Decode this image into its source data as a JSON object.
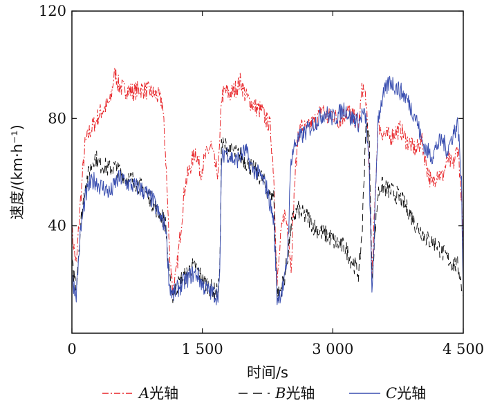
{
  "chart_data": {
    "type": "line",
    "xlabel": "时间/s",
    "ylabel": "速度/(km·h⁻¹)",
    "xlim": [
      0,
      4500
    ],
    "ylim": [
      0,
      120
    ],
    "xticks": [
      0,
      1500,
      3000,
      4500
    ],
    "xtick_labels": [
      "0",
      "1 500",
      "3 000",
      "4 500"
    ],
    "yticks": [
      40,
      80,
      120
    ],
    "ytick_labels": [
      "40",
      "80",
      "120"
    ],
    "grid": false,
    "legend_position": "bottom",
    "series": [
      {
        "name": "A光轴",
        "legend_italic": "A",
        "legend_suffix": "光轴",
        "color": "#e8262a",
        "dash": "9,3,2,3",
        "x": [
          0,
          50,
          100,
          150,
          200,
          260,
          320,
          380,
          440,
          480,
          500,
          540,
          600,
          700,
          800,
          900,
          1000,
          1040,
          1080,
          1120,
          1160,
          1200,
          1240,
          1300,
          1360,
          1420,
          1480,
          1540,
          1600,
          1650,
          1680,
          1700,
          1720,
          1760,
          1820,
          1880,
          1940,
          2000,
          2060,
          2120,
          2180,
          2240,
          2280,
          2320,
          2360,
          2400,
          2440,
          2480,
          2520,
          2560,
          2600,
          2640,
          2700,
          2760,
          2820,
          2880,
          2940,
          3000,
          3060,
          3120,
          3180,
          3240,
          3300,
          3340,
          3380,
          3420,
          3450,
          3480,
          3520,
          3560,
          3600,
          3660,
          3720,
          3780,
          3840,
          3900,
          3960,
          4020,
          4080,
          4140,
          4200,
          4260,
          4320,
          4380,
          4440,
          4480,
          4500
        ],
        "values": [
          38,
          25,
          50,
          70,
          75,
          78,
          82,
          84,
          86,
          95,
          97,
          92,
          91,
          90,
          91,
          90,
          88,
          86,
          65,
          32,
          16,
          22,
          35,
          55,
          62,
          68,
          60,
          66,
          70,
          62,
          60,
          70,
          88,
          90,
          89,
          91,
          94,
          88,
          86,
          84,
          83,
          79,
          77,
          60,
          18,
          35,
          45,
          40,
          25,
          55,
          74,
          77,
          76,
          78,
          80,
          84,
          80,
          82,
          79,
          81,
          83,
          80,
          78,
          92,
          88,
          60,
          20,
          45,
          78,
          75,
          74,
          73,
          75,
          76,
          72,
          70,
          68,
          72,
          62,
          55,
          60,
          58,
          65,
          62,
          70,
          50,
          28
        ]
      },
      {
        "name": "B光轴",
        "legend_italic": "B",
        "legend_suffix": "光轴",
        "color": "#111111",
        "dash": "10,6",
        "x": [
          0,
          50,
          100,
          150,
          200,
          260,
          320,
          380,
          440,
          500,
          560,
          620,
          700,
          780,
          860,
          940,
          1000,
          1040,
          1080,
          1120,
          1160,
          1200,
          1260,
          1320,
          1380,
          1440,
          1500,
          1560,
          1620,
          1660,
          1680,
          1700,
          1720,
          1760,
          1820,
          1880,
          1940,
          2000,
          2060,
          2120,
          2180,
          2240,
          2280,
          2320,
          2360,
          2400,
          2440,
          2480,
          2520,
          2560,
          2600,
          2660,
          2720,
          2780,
          2840,
          2900,
          2960,
          3020,
          3080,
          3140,
          3200,
          3260,
          3300,
          3340,
          3380,
          3420,
          3450,
          3480,
          3520,
          3560,
          3600,
          3660,
          3720,
          3780,
          3840,
          3900,
          3960,
          4020,
          4080,
          4140,
          4200,
          4260,
          4320,
          4380,
          4440,
          4480,
          4500
        ],
        "values": [
          25,
          18,
          40,
          55,
          60,
          66,
          63,
          62,
          61,
          62,
          60,
          58,
          57,
          55,
          52,
          48,
          45,
          43,
          40,
          20,
          14,
          17,
          20,
          22,
          25,
          24,
          20,
          18,
          16,
          15,
          16,
          22,
          70,
          70,
          68,
          67,
          66,
          64,
          62,
          60,
          58,
          54,
          50,
          52,
          14,
          16,
          20,
          28,
          40,
          44,
          46,
          44,
          43,
          40,
          38,
          37,
          36,
          34,
          33,
          32,
          28,
          25,
          22,
          40,
          78,
          72,
          20,
          35,
          52,
          55,
          54,
          53,
          52,
          50,
          47,
          44,
          40,
          38,
          35,
          34,
          33,
          30,
          28,
          26,
          25,
          18,
          14
        ]
      },
      {
        "name": "C光轴",
        "legend_italic": "C",
        "legend_suffix": "光轴",
        "color": "#3a4fb0",
        "dash": "",
        "x": [
          0,
          50,
          100,
          150,
          200,
          260,
          320,
          380,
          440,
          500,
          560,
          620,
          700,
          780,
          860,
          940,
          1000,
          1040,
          1080,
          1120,
          1160,
          1200,
          1260,
          1320,
          1380,
          1440,
          1500,
          1560,
          1620,
          1660,
          1680,
          1700,
          1720,
          1760,
          1820,
          1880,
          1940,
          2000,
          2060,
          2120,
          2180,
          2240,
          2280,
          2320,
          2360,
          2400,
          2440,
          2480,
          2520,
          2560,
          2600,
          2660,
          2720,
          2780,
          2840,
          2900,
          2960,
          3020,
          3080,
          3140,
          3200,
          3260,
          3300,
          3340,
          3380,
          3420,
          3450,
          3480,
          3520,
          3560,
          3600,
          3660,
          3720,
          3780,
          3840,
          3900,
          3960,
          4020,
          4080,
          4140,
          4200,
          4260,
          4320,
          4380,
          4440,
          4480,
          4500
        ],
        "values": [
          20,
          15,
          38,
          50,
          55,
          57,
          55,
          54,
          52,
          56,
          58,
          56,
          55,
          54,
          52,
          49,
          44,
          42,
          40,
          18,
          14,
          16,
          18,
          20,
          22,
          22,
          18,
          16,
          15,
          14,
          15,
          20,
          64,
          68,
          66,
          64,
          66,
          68,
          62,
          60,
          58,
          54,
          48,
          42,
          13,
          15,
          18,
          30,
          65,
          70,
          72,
          74,
          76,
          78,
          80,
          82,
          81,
          80,
          82,
          84,
          80,
          80,
          78,
          82,
          80,
          60,
          14,
          40,
          80,
          86,
          90,
          94,
          92,
          90,
          88,
          84,
          80,
          72,
          68,
          66,
          70,
          72,
          68,
          74,
          78,
          55,
          15
        ]
      }
    ]
  }
}
